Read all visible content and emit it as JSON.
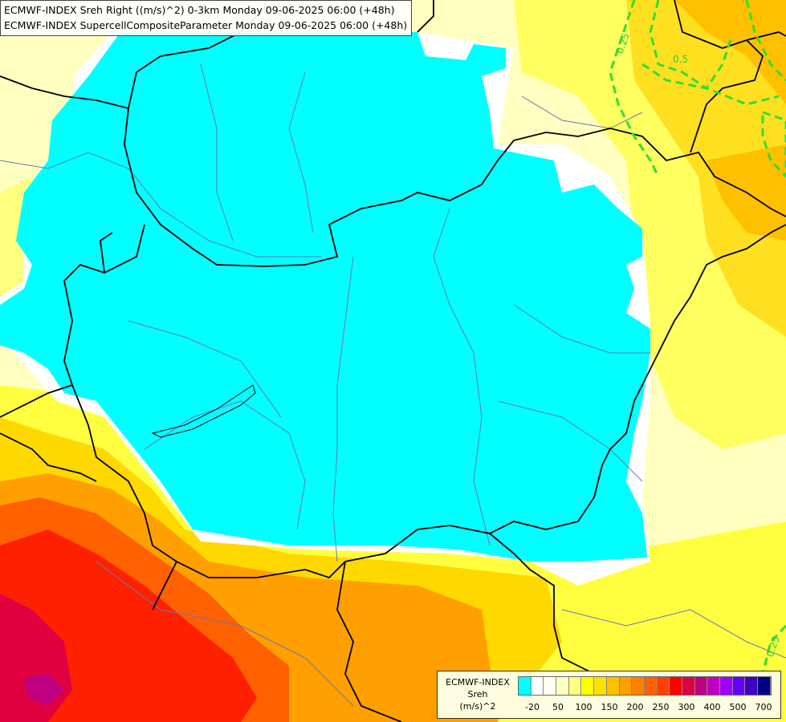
{
  "titles": [
    "ECMWF-INDEX Sreh Right ((m/s)^2) 0-3km Monday 09-06-2025 06:00 (+48h)",
    "ECMWF-INDEX SupercellCompositeParameter Monday 09-06-2025 06:00 (+48h)"
  ],
  "legend": {
    "line1": "ECMWF-INDEX",
    "line2": "Sreh",
    "line3": "(m/s)^2",
    "colors": [
      "#00ffff",
      "#ffffff",
      "#fffff0",
      "#ffffc0",
      "#ffff80",
      "#ffff00",
      "#ffe000",
      "#ffc000",
      "#ffa000",
      "#ff8000",
      "#ff6000",
      "#ff4000",
      "#ff0000",
      "#e00040",
      "#c00080",
      "#c000c0",
      "#a000ff",
      "#6000ff",
      "#4000c0",
      "#000080"
    ],
    "labels": [
      "-20",
      "50",
      "100",
      "150",
      "200",
      "250",
      "300",
      "400",
      "500",
      "700"
    ]
  },
  "contours": [
    {
      "label": "0.25",
      "color": "#33dd33"
    },
    {
      "label": "0.5",
      "color": "#33dd33"
    },
    {
      "label": "0.25",
      "color": "#33dd33"
    }
  ]
}
